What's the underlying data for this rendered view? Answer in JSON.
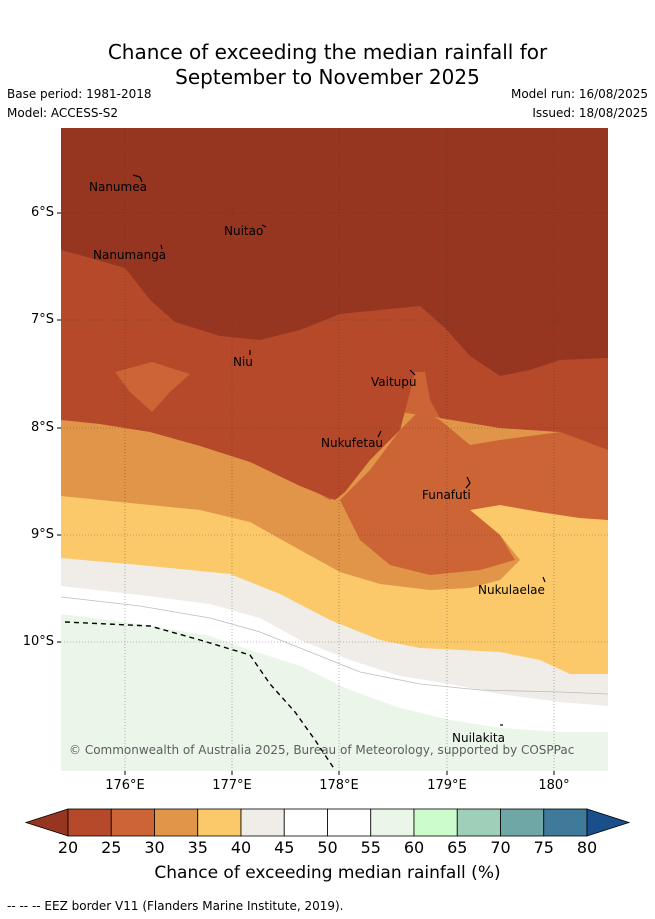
{
  "title": {
    "line1": "Chance of exceeding the median rainfall for",
    "line2": "September to November 2025"
  },
  "meta": {
    "base_period": "Base period: 1981-2018",
    "model": "Model: ACCESS-S2",
    "model_run": "Model run: 16/08/2025",
    "issued": "Issued: 18/08/2025"
  },
  "axes": {
    "y_ticks": [
      "6°S",
      "7°S",
      "8°S",
      "9°S",
      "10°S"
    ],
    "x_ticks": [
      "176°E",
      "177°E",
      "178°E",
      "179°E",
      "180°"
    ]
  },
  "places": [
    {
      "name": "Nanumea"
    },
    {
      "name": "Nuitao"
    },
    {
      "name": "Nanumanga"
    },
    {
      "name": "Niu"
    },
    {
      "name": "Vaitupu"
    },
    {
      "name": "Nukufetau"
    },
    {
      "name": "Funafuti"
    },
    {
      "name": "Nukulaelae"
    },
    {
      "name": "Nuilakita"
    }
  ],
  "copyright": "© Commonwealth of Australia 2025, Bureau of Meteorology, supported by COSPPac",
  "colorbar": {
    "ticks": [
      "20",
      "25",
      "30",
      "35",
      "40",
      "45",
      "50",
      "55",
      "60",
      "65",
      "70",
      "75",
      "80"
    ],
    "colors": [
      "#963621",
      "#b5492a",
      "#cc6436",
      "#e09549",
      "#fcc96a",
      "#f0ece7",
      "#ffffff",
      "#ffffff",
      "#eaf6e8",
      "#ccfccc",
      "#9dcfb9",
      "#6fa6a6",
      "#3f7a9a",
      "#1b4f8c"
    ],
    "label": "Chance of exceeding median rainfall (%)"
  },
  "footer": "-- -- -- EEZ border V11 (Flanders Marine Institute, 2019)."
}
